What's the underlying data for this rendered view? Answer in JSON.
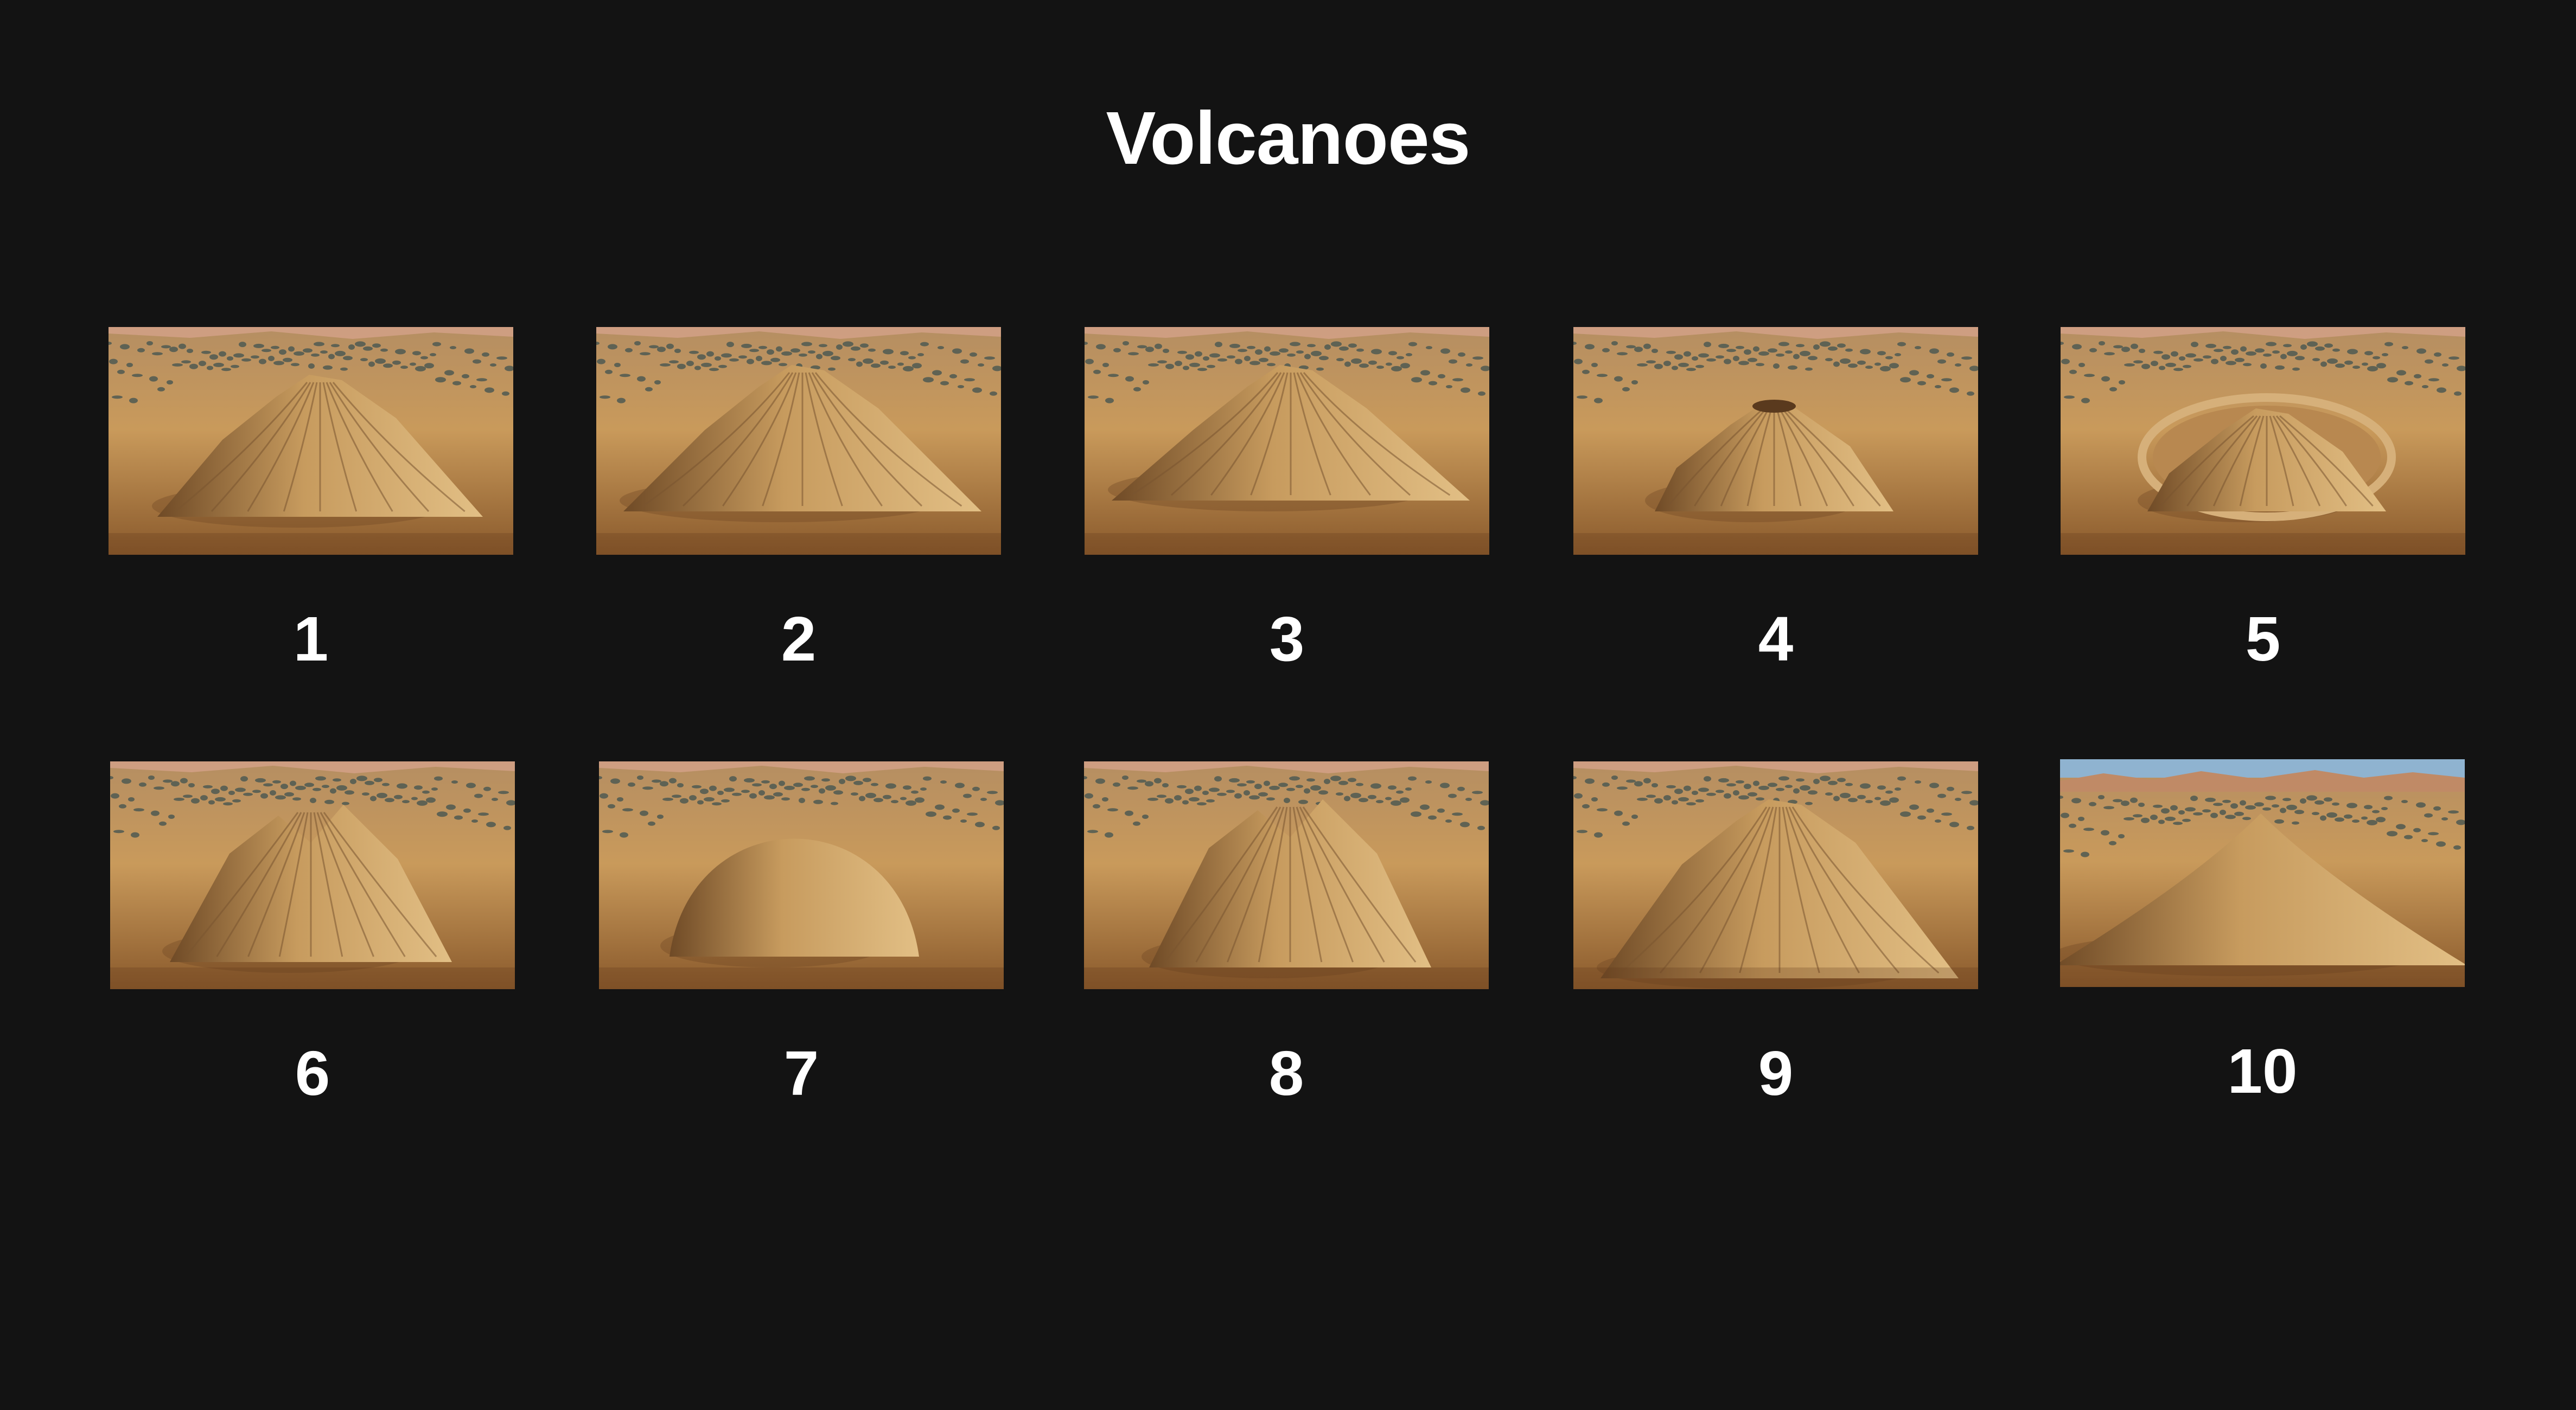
{
  "page": {
    "title": "Volcanoes",
    "background": "#131313"
  },
  "thumbnails": [
    {
      "label": "1",
      "variant": "ridged-peak"
    },
    {
      "label": "2",
      "variant": "wide-ridged"
    },
    {
      "label": "3",
      "variant": "broad-ridged"
    },
    {
      "label": "4",
      "variant": "cratered-cone"
    },
    {
      "label": "5",
      "variant": "caldera-ring"
    },
    {
      "label": "6",
      "variant": "twin-peaks"
    },
    {
      "label": "7",
      "variant": "dome"
    },
    {
      "label": "8",
      "variant": "low-lobed"
    },
    {
      "label": "9",
      "variant": "heavily-eroded"
    },
    {
      "label": "10",
      "variant": "smooth-shield"
    }
  ],
  "palette": {
    "sand": "#c99a5b",
    "sand_dark": "#8a5a2c",
    "mountain_light": "#e2bf85",
    "mountain_shadow": "#6f4a26",
    "vegetation": "#4f5a52",
    "sky": "#8fb3d0"
  }
}
